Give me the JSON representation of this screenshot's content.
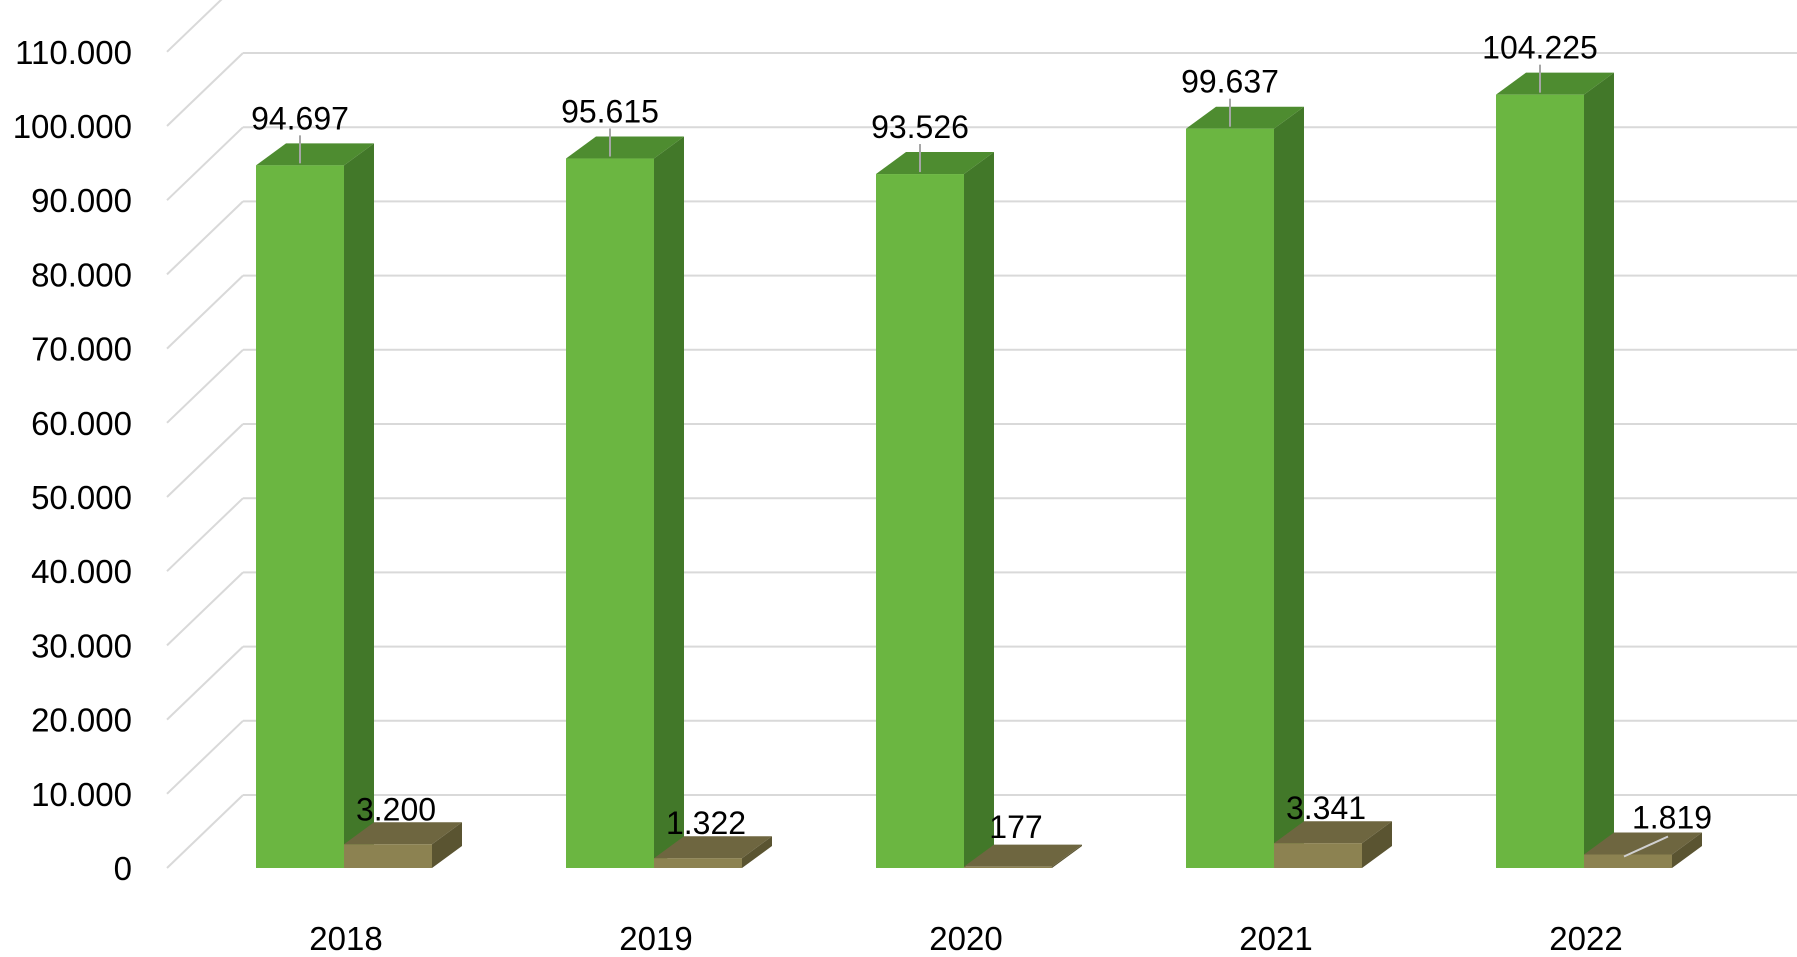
{
  "chart_data": {
    "type": "bar",
    "categories": [
      "2018",
      "2019",
      "2020",
      "2021",
      "2022"
    ],
    "series": [
      {
        "values": [
          94697,
          95615,
          93526,
          99637,
          104225
        ],
        "color": "#6BB641",
        "side_color": "#427829",
        "top_color": "#4E8C30"
      },
      {
        "values": [
          3200,
          1322,
          177,
          3341,
          1819
        ],
        "color": "#8C8251",
        "side_color": "#5A5431",
        "top_color": "#6E6640"
      }
    ],
    "data_labels": [
      [
        "94.697",
        "95.615",
        "93.526",
        "99.637",
        "104.225"
      ],
      [
        "3.200",
        "1.322",
        "177",
        "3.341",
        "1.819"
      ]
    ],
    "yticks": [
      "0",
      "10.000",
      "20.000",
      "30.000",
      "40.000",
      "50.000",
      "60.000",
      "70.000",
      "80.000",
      "90.000",
      "100.000",
      "110.000"
    ],
    "ylim": [
      0,
      120000
    ],
    "grid": true,
    "legend": "none",
    "title": "",
    "xlabel": "",
    "ylabel": ""
  }
}
